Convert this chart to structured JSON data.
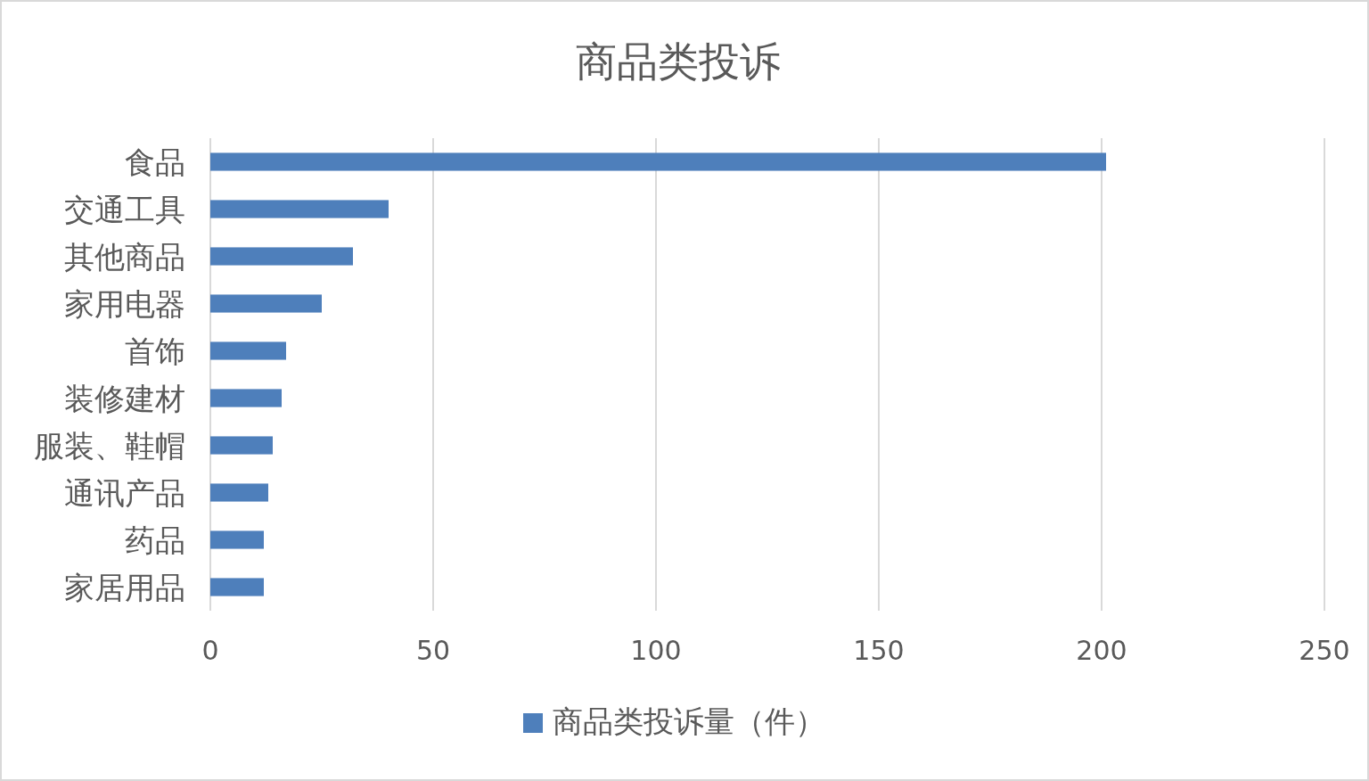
{
  "chart_data": {
    "type": "bar",
    "orientation": "horizontal",
    "title": "商品类投诉",
    "categories": [
      "食品",
      "交通工具",
      "其他商品",
      "家用电器",
      "首饰",
      "装修建材",
      "服装、鞋帽",
      "通讯产品",
      "药品",
      "家居用品"
    ],
    "series": [
      {
        "name": "商品类投诉量（件）",
        "color": "#4e7fbb",
        "values": [
          201,
          40,
          32,
          25,
          17,
          16,
          14,
          13,
          12,
          12
        ]
      }
    ],
    "xlim": [
      0,
      250
    ],
    "xticks": [
      0,
      50,
      100,
      150,
      200,
      250
    ],
    "grid": "x",
    "legend": "bottom"
  }
}
